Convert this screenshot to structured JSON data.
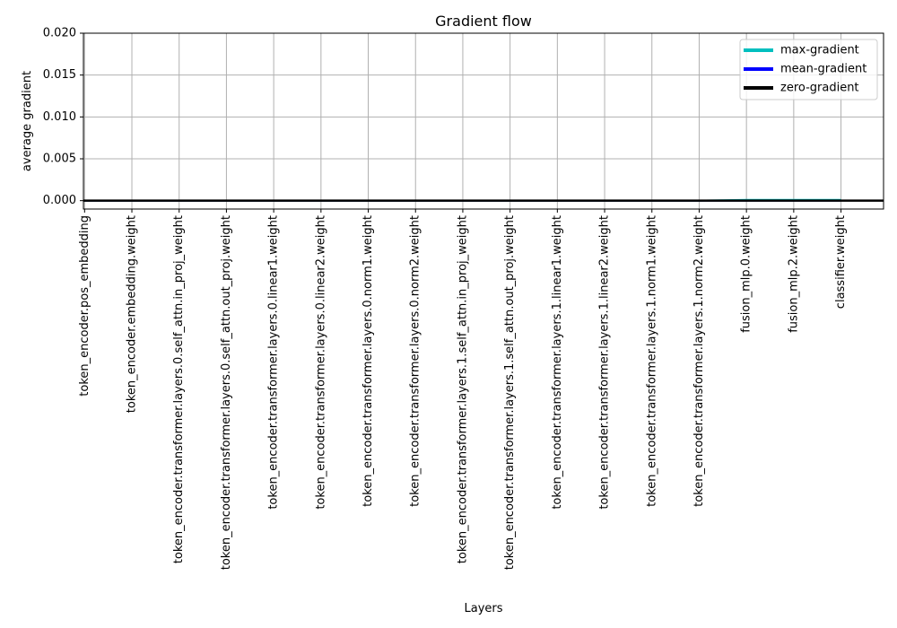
{
  "chart_data": {
    "type": "line",
    "title": "Gradient flow",
    "xlabel": "Layers",
    "ylabel": "average gradient",
    "categories": [
      "token_encoder.pos_embedding",
      "token_encoder.embedding.weight",
      "token_encoder.transformer.layers.0.self_attn.in_proj_weight",
      "token_encoder.transformer.layers.0.self_attn.out_proj.weight",
      "token_encoder.transformer.layers.0.linear1.weight",
      "token_encoder.transformer.layers.0.linear2.weight",
      "token_encoder.transformer.layers.0.norm1.weight",
      "token_encoder.transformer.layers.0.norm2.weight",
      "token_encoder.transformer.layers.1.self_attn.in_proj_weight",
      "token_encoder.transformer.layers.1.self_attn.out_proj.weight",
      "token_encoder.transformer.layers.1.linear1.weight",
      "token_encoder.transformer.layers.1.linear2.weight",
      "token_encoder.transformer.layers.1.norm1.weight",
      "token_encoder.transformer.layers.1.norm2.weight",
      "fusion_mlp.0.weight",
      "fusion_mlp.2.weight",
      "classifier.weight"
    ],
    "yticks": [
      "0.000",
      "0.005",
      "0.010",
      "0.015",
      "0.020"
    ],
    "ytick_values": [
      0,
      0.005,
      0.01,
      0.015,
      0.02
    ],
    "ylim": [
      -0.001,
      0.02
    ],
    "xlim": [
      -0.025,
      16.9
    ],
    "grid": true,
    "legend_position": "top-right",
    "series": [
      {
        "name": "max-gradient",
        "color": "#00bfbf",
        "values": [
          0,
          0,
          0,
          0,
          0,
          0,
          0,
          0,
          0,
          0,
          0,
          0,
          0,
          0,
          0.0001,
          0.0001,
          0.0001
        ]
      },
      {
        "name": "mean-gradient",
        "color": "#0000ff",
        "values": [
          0,
          0,
          0,
          0,
          0,
          0,
          0,
          0,
          0,
          0,
          0,
          0,
          0,
          0,
          0,
          0,
          0
        ]
      },
      {
        "name": "zero-gradient",
        "color": "#000000",
        "values": [
          0,
          0,
          0,
          0,
          0,
          0,
          0,
          0,
          0,
          0,
          0,
          0,
          0,
          0,
          0,
          0,
          0
        ]
      }
    ]
  }
}
